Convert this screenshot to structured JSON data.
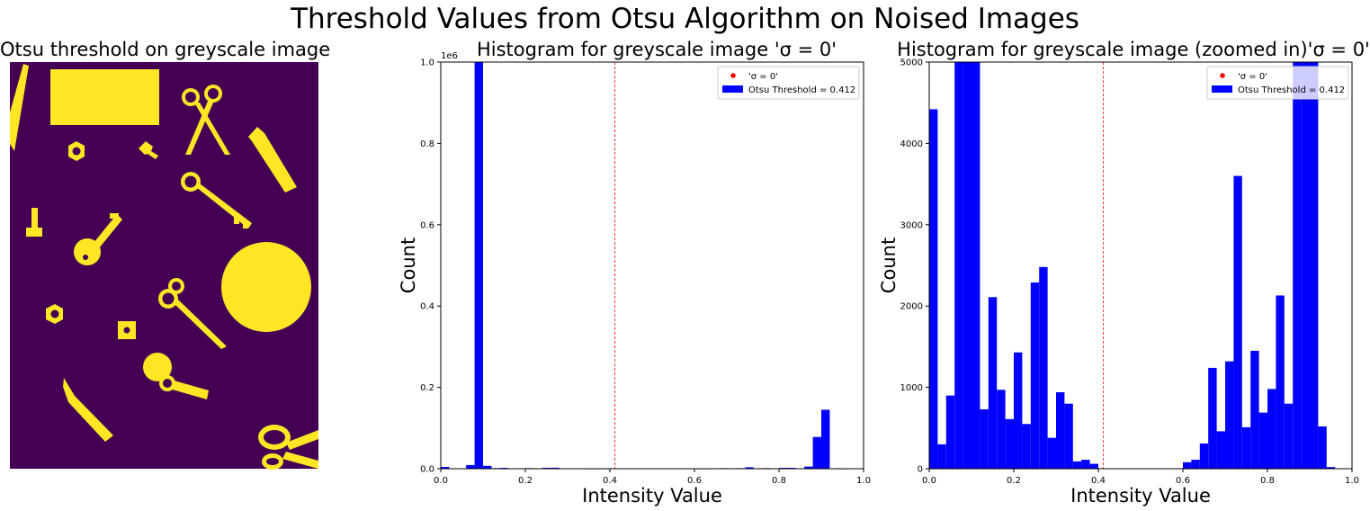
{
  "figure": {
    "suptitle": "Threshold Values from Otsu Algorithm on Noised Images"
  },
  "image_panel": {
    "title": "Otsu threshold on greyscale image",
    "colors": {
      "background": "#440154",
      "foreground": "#fde725"
    },
    "shapes": [
      "rectangle",
      "scissors",
      "scissors",
      "scissors",
      "hexagon-nut",
      "hexagon-nut",
      "square-nut",
      "key",
      "key",
      "key",
      "key",
      "knife-blade",
      "knife-blade",
      "pencil",
      "circle"
    ]
  },
  "colors": {
    "bars": "#0000ff",
    "threshold_line": "#ff0000",
    "legend_marker": "#ff0000"
  },
  "chart_data": [
    {
      "type": "bar",
      "title": "Histogram for greyscale image 'σ = 0'",
      "xlabel": "Intensity Value",
      "ylabel": "Count",
      "xlim": [
        0,
        1
      ],
      "ylim": [
        0,
        1000000
      ],
      "y_offset_label": "1e6",
      "xticks": [
        "0.0",
        "0.2",
        "0.4",
        "0.6",
        "0.8",
        "1.0"
      ],
      "yticks": [
        "0.0",
        "0.2",
        "0.4",
        "0.6",
        "0.8",
        "1.0"
      ],
      "ytick_values": [
        0,
        200000,
        400000,
        600000,
        800000,
        1000000
      ],
      "bin_width": 0.02,
      "bins_start": [
        0.0,
        0.02,
        0.04,
        0.06,
        0.08,
        0.1,
        0.12,
        0.14,
        0.16,
        0.18,
        0.2,
        0.22,
        0.24,
        0.26,
        0.28,
        0.3,
        0.32,
        0.34,
        0.36,
        0.38,
        0.4,
        0.42,
        0.44,
        0.46,
        0.48,
        0.5,
        0.52,
        0.54,
        0.56,
        0.58,
        0.6,
        0.62,
        0.64,
        0.66,
        0.68,
        0.7,
        0.72,
        0.74,
        0.76,
        0.78,
        0.8,
        0.82,
        0.84,
        0.86,
        0.88,
        0.9,
        0.92,
        0.94,
        0.96,
        0.98
      ],
      "counts": [
        4400,
        300,
        900,
        9000,
        1000000,
        7000,
        1500,
        2100,
        1000,
        600,
        1400,
        550,
        2300,
        2500,
        380,
        950,
        800,
        90,
        100,
        60,
        0,
        0,
        0,
        0,
        0,
        0,
        0,
        0,
        0,
        0,
        90,
        110,
        300,
        1250,
        450,
        1300,
        3600,
        500,
        1450,
        700,
        2100,
        2150,
        800,
        5200,
        78000,
        145000,
        520,
        20,
        0,
        0
      ],
      "threshold": 0.412,
      "legend": {
        "position": "upper right",
        "entries": [
          "'σ = 0'",
          "Otsu Threshold = 0.412"
        ]
      }
    },
    {
      "type": "bar",
      "title": "Histogram for greyscale image (zoomed in)'σ = 0'",
      "xlabel": "Intensity Value",
      "ylabel": "Count",
      "xlim": [
        0,
        1
      ],
      "ylim": [
        0,
        5000
      ],
      "xticks": [
        "0.0",
        "0.2",
        "0.4",
        "0.6",
        "0.8",
        "1.0"
      ],
      "yticks": [
        "0",
        "1000",
        "2000",
        "3000",
        "4000",
        "5000"
      ],
      "ytick_values": [
        0,
        1000,
        2000,
        3000,
        4000,
        5000
      ],
      "bin_width": 0.02,
      "bins_start": [
        0.0,
        0.02,
        0.04,
        0.06,
        0.08,
        0.1,
        0.12,
        0.14,
        0.16,
        0.18,
        0.2,
        0.22,
        0.24,
        0.26,
        0.28,
        0.3,
        0.32,
        0.34,
        0.36,
        0.38,
        0.4,
        0.42,
        0.44,
        0.46,
        0.48,
        0.5,
        0.52,
        0.54,
        0.56,
        0.58,
        0.6,
        0.62,
        0.64,
        0.66,
        0.68,
        0.7,
        0.72,
        0.74,
        0.76,
        0.78,
        0.8,
        0.82,
        0.84,
        0.86,
        0.88,
        0.9,
        0.92,
        0.94,
        0.96,
        0.98
      ],
      "counts": [
        4420,
        300,
        900,
        9000,
        1000000,
        7000,
        730,
        2110,
        970,
        610,
        1430,
        550,
        2290,
        2480,
        380,
        940,
        800,
        90,
        110,
        60,
        0,
        0,
        0,
        0,
        0,
        0,
        0,
        0,
        0,
        0,
        80,
        110,
        310,
        1240,
        460,
        1320,
        3600,
        510,
        1450,
        690,
        980,
        2130,
        800,
        5200,
        78000,
        145000,
        520,
        20,
        0,
        0
      ],
      "threshold": 0.412,
      "legend": {
        "position": "upper right",
        "entries": [
          "'σ = 0'",
          "Otsu Threshold = 0.412"
        ]
      }
    }
  ]
}
